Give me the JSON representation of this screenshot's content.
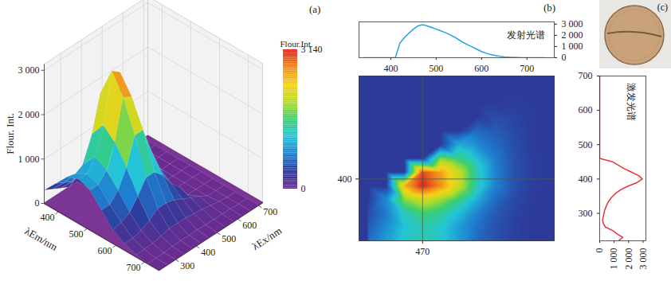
{
  "chart_data": [
    {
      "type": "surface3d",
      "title": "(a)",
      "x_label": "λEm/nm",
      "y_label": "λEx/nm",
      "z_label": "Flour. Int.",
      "x": [
        350,
        390,
        430,
        470,
        510,
        550,
        590,
        630,
        670,
        710,
        750
      ],
      "y": [
        220,
        260,
        300,
        340,
        380,
        420,
        460,
        500,
        540,
        580,
        620,
        660,
        700
      ],
      "z": [
        [
          300,
          600,
          900,
          1000,
          900,
          600,
          300,
          150,
          50,
          0,
          0
        ],
        [
          200,
          500,
          850,
          1000,
          900,
          600,
          350,
          150,
          50,
          0,
          0
        ],
        [
          100,
          400,
          950,
          1250,
          1100,
          800,
          450,
          200,
          60,
          0,
          0
        ],
        [
          0,
          500,
          1500,
          1850,
          1600,
          1200,
          700,
          300,
          100,
          20,
          0
        ],
        [
          0,
          0,
          2300,
          2950,
          2500,
          1800,
          1000,
          450,
          150,
          30,
          0
        ],
        [
          0,
          0,
          0,
          2800,
          2400,
          1800,
          1000,
          450,
          150,
          30,
          0
        ],
        [
          0,
          0,
          0,
          0,
          1500,
          1200,
          800,
          400,
          150,
          30,
          0
        ],
        [
          0,
          0,
          0,
          0,
          0,
          700,
          500,
          300,
          120,
          20,
          0
        ],
        [
          0,
          0,
          0,
          0,
          0,
          0,
          300,
          200,
          100,
          20,
          0
        ],
        [
          0,
          0,
          0,
          0,
          0,
          0,
          0,
          120,
          60,
          20,
          0
        ],
        [
          0,
          0,
          0,
          0,
          0,
          0,
          0,
          0,
          30,
          10,
          0
        ],
        [
          0,
          0,
          0,
          0,
          0,
          0,
          0,
          0,
          0,
          0,
          0
        ],
        [
          0,
          0,
          0,
          0,
          0,
          0,
          0,
          0,
          0,
          0,
          0
        ]
      ],
      "xlim": [
        350,
        750
      ],
      "xticks": [
        400,
        500,
        600,
        700
      ],
      "ylim": [
        220,
        720
      ],
      "yticks": [
        300,
        400,
        500,
        600,
        700
      ],
      "zlim": [
        0,
        3140
      ],
      "zticks": [
        0,
        {
          "value": 1000,
          "label": "1 000"
        },
        {
          "value": 2000,
          "label": "2 000"
        },
        {
          "value": 3000,
          "label": "3 000"
        }
      ],
      "colorbar": {
        "title": "Flour.Int.",
        "range": [
          0,
          3140
        ],
        "ticks": [
          0,
          {
            "value": 3140,
            "label": "3 140"
          }
        ]
      }
    },
    {
      "type": "heatmap",
      "title": "(b)",
      "x": [
        350,
        390,
        430,
        470,
        510,
        550,
        590,
        630,
        670,
        710,
        750
      ],
      "y": [
        220,
        260,
        300,
        340,
        380,
        420,
        460,
        500,
        540,
        580,
        620,
        660,
        700
      ],
      "z": [
        [
          300,
          600,
          900,
          1000,
          900,
          600,
          300,
          150,
          50,
          0,
          0
        ],
        [
          200,
          500,
          850,
          1000,
          900,
          600,
          350,
          150,
          50,
          0,
          0
        ],
        [
          100,
          400,
          950,
          1250,
          1100,
          800,
          450,
          200,
          60,
          0,
          0
        ],
        [
          0,
          500,
          1500,
          1850,
          1600,
          1200,
          700,
          300,
          100,
          20,
          0
        ],
        [
          0,
          0,
          2300,
          2950,
          2500,
          1800,
          1000,
          450,
          150,
          30,
          0
        ],
        [
          0,
          0,
          0,
          2800,
          2400,
          1800,
          1000,
          450,
          150,
          30,
          0
        ],
        [
          0,
          0,
          0,
          0,
          1500,
          1200,
          800,
          400,
          150,
          30,
          0
        ],
        [
          0,
          0,
          0,
          0,
          0,
          700,
          500,
          300,
          120,
          20,
          0
        ],
        [
          0,
          0,
          0,
          0,
          0,
          0,
          300,
          200,
          100,
          20,
          0
        ],
        [
          0,
          0,
          0,
          0,
          0,
          0,
          0,
          120,
          60,
          20,
          0
        ],
        [
          0,
          0,
          0,
          0,
          0,
          0,
          0,
          0,
          30,
          10,
          0
        ],
        [
          0,
          0,
          0,
          0,
          0,
          0,
          0,
          0,
          0,
          0,
          0
        ],
        [
          0,
          0,
          0,
          0,
          0,
          0,
          0,
          0,
          0,
          0,
          0
        ]
      ],
      "xlim": [
        330,
        760
      ],
      "xticks": [
        470
      ],
      "ylim": [
        220,
        700
      ],
      "yticks": [
        400
      ]
    },
    {
      "type": "line",
      "title": "发射光谱",
      "color": "#29a3e0",
      "x": [
        340,
        350,
        360,
        370,
        380,
        390,
        400,
        410,
        420,
        430,
        440,
        450,
        460,
        470,
        480,
        490,
        500,
        510,
        520,
        530,
        540,
        550,
        560,
        570,
        580,
        590,
        600,
        610,
        620,
        630,
        640,
        650,
        660,
        670,
        680,
        690,
        700,
        710,
        720,
        730,
        740
      ],
      "values": [
        0,
        0,
        0,
        0,
        0,
        0,
        0,
        0,
        1300,
        1800,
        2200,
        2550,
        2850,
        2950,
        2850,
        2700,
        2550,
        2400,
        2250,
        2050,
        1850,
        1600,
        1350,
        1150,
        950,
        750,
        550,
        400,
        280,
        190,
        120,
        80,
        50,
        30,
        15,
        5,
        0,
        0,
        0,
        0,
        0
      ],
      "xlim": [
        330,
        760
      ],
      "xticks": [
        400,
        500,
        600,
        700
      ],
      "ylim": [
        0,
        3200
      ],
      "yticks": [
        0,
        {
          "value": 1000,
          "label": "1 000"
        },
        {
          "value": 2000,
          "label": "2 000"
        },
        {
          "value": 3000,
          "label": "3 000"
        }
      ]
    },
    {
      "type": "line",
      "title": "激发光谱",
      "color": "#e8313a",
      "orientation": "horizontal",
      "y": [
        220,
        230,
        240,
        250,
        260,
        270,
        280,
        290,
        300,
        310,
        320,
        330,
        340,
        350,
        360,
        370,
        380,
        390,
        400,
        410,
        420,
        430,
        440,
        450,
        460,
        470,
        480,
        490,
        500,
        510,
        520,
        530,
        540,
        550,
        560,
        570,
        580,
        590,
        600,
        610,
        620,
        630,
        640,
        650,
        660,
        670,
        680,
        690,
        700
      ],
      "values": [
        1300,
        1600,
        1200,
        900,
        400,
        250,
        200,
        250,
        300,
        350,
        450,
        550,
        700,
        900,
        1150,
        1500,
        2000,
        2600,
        2950,
        2700,
        2200,
        1700,
        1300,
        900,
        0,
        0,
        0,
        0,
        0,
        0,
        0,
        0,
        0,
        0,
        0,
        0,
        0,
        0,
        0,
        0,
        0,
        0,
        0,
        0,
        0,
        0,
        0,
        0,
        0
      ],
      "xlim": [
        0,
        3200
      ],
      "xticks": [
        0,
        {
          "value": 1000,
          "label": "1 000"
        },
        {
          "value": 2000,
          "label": "2 000"
        },
        {
          "value": 3000,
          "label": "3 000"
        }
      ],
      "ylim": [
        220,
        700
      ],
      "yticks": [
        300,
        400,
        500,
        600,
        700
      ]
    },
    {
      "type": "image",
      "title": "(c)"
    }
  ]
}
